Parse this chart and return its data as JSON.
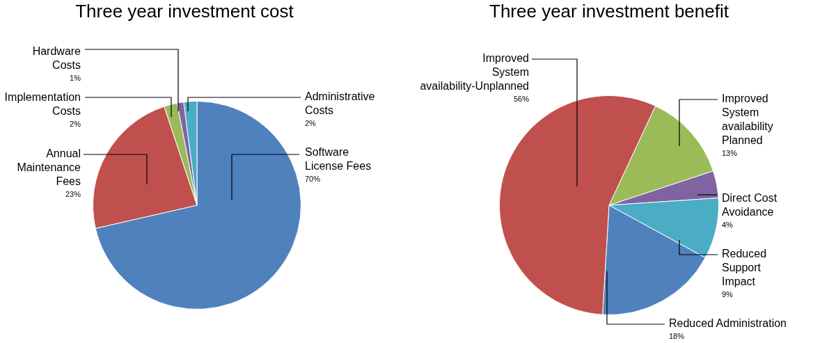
{
  "chart_data": [
    {
      "type": "pie",
      "title": "Three year investment cost",
      "categories": [
        "Software License Fees",
        "Annual Maintenance Fees",
        "Implementation Costs",
        "Hardware Costs",
        "Administrative Costs"
      ],
      "values": [
        70,
        23,
        2,
        1,
        2
      ],
      "value_labels": [
        "70%",
        "23%",
        "2%",
        "1%",
        "2%"
      ],
      "colors": [
        "#4f81bd",
        "#c0504d",
        "#9bbb59",
        "#8064a2",
        "#4bacc6"
      ],
      "legend": false
    },
    {
      "type": "pie",
      "title": "Three year investment benefit",
      "categories": [
        "Improved System availability Planned",
        "Direct Cost Avoidance",
        "Reduced Support Impact",
        "Reduced Administration",
        "Improved System availability-Unplanned"
      ],
      "values": [
        13,
        4,
        9,
        18,
        56
      ],
      "value_labels": [
        "13%",
        "4%",
        "9%",
        "18%",
        "56%"
      ],
      "colors": [
        "#9bbb59",
        "#8064a2",
        "#4bacc6",
        "#4f81bd",
        "#c0504d"
      ],
      "legend": false
    }
  ]
}
